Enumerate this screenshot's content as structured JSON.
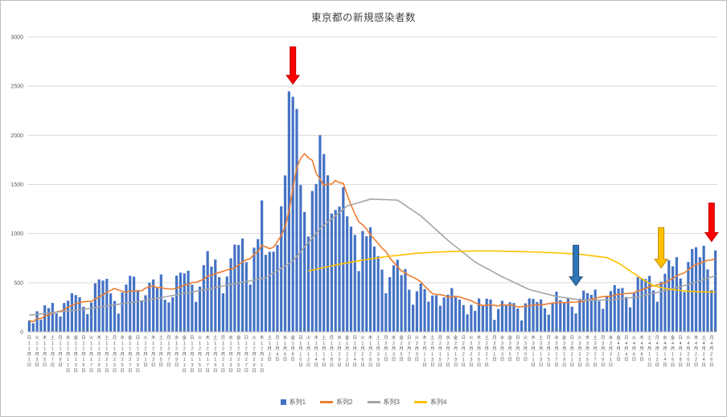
{
  "chart_data": {
    "type": "bar",
    "title": "東京都の新規感染者数",
    "ylim": [
      0,
      3000
    ],
    "y_ticks": [
      0,
      500,
      1000,
      1500,
      2000,
      2500,
      3000
    ],
    "grid": true,
    "legend_position": "bottom",
    "x": {
      "label_every": 2,
      "weekday_chars": [
        "日",
        "月",
        "火",
        "水",
        "木",
        "金",
        "土"
      ],
      "month_suffix": "月",
      "day_suffix": "日",
      "months": [
        {
          "m": 11,
          "days": 30
        },
        {
          "m": 12,
          "days": 31
        },
        {
          "m": 1,
          "days": 31
        },
        {
          "m": 2,
          "days": 28
        },
        {
          "m": 3,
          "days": 31
        },
        {
          "m": 4,
          "days": 27
        }
      ]
    },
    "series": [
      {
        "name": "系列1",
        "type": "bar",
        "color": "#4472C4",
        "values": [
          116,
          87,
          209,
          122,
          269,
          242,
          294,
          189,
          157,
          293,
          317,
          393,
          374,
          352,
          255,
          180,
          298,
          493,
          534,
          522,
          539,
          391,
          314,
          186,
          401,
          481,
          570,
          561,
          418,
          311,
          372,
          500,
          533,
          449,
          584,
          327,
          299,
          352,
          572,
          602,
          595,
          621,
          480,
          305,
          460,
          678,
          822,
          664,
          736,
          556,
          392,
          563,
          748,
          888,
          884,
          949,
          708,
          481,
          856,
          944,
          1337,
          783,
          814,
          816,
          884,
          1278,
          1591,
          2447,
          2392,
          2268,
          1494,
          1219,
          970,
          1433,
          1502,
          2001,
          1809,
          1592,
          1204,
          1240,
          1274,
          1471,
          1175,
          1070,
          986,
          618,
          1026,
          973,
          1064,
          868,
          769,
          633,
          393,
          556,
          676,
          734,
          577,
          639,
          429,
          276,
          412,
          491,
          434,
          307,
          369,
          371,
          266,
          350,
          378,
          445,
          353,
          327,
          272,
          178,
          275,
          213,
          340,
          270,
          337,
          329,
          121,
          232,
          316,
          279,
          301,
          293,
          237,
          116,
          290,
          340,
          335,
          304,
          330,
          239,
          175,
          300,
          409,
          323,
          303,
          342,
          256,
          187,
          337,
          420,
          394,
          376,
          430,
          313,
          234,
          364,
          414,
          475,
          440,
          446,
          355,
          249,
          399,
          555,
          545,
          537,
          570,
          421,
          306,
          510,
          591,
          729,
          667,
          759,
          543,
          405,
          711,
          843,
          861,
          759,
          876,
          635,
          425,
          828
        ]
      },
      {
        "name": "系列2",
        "type": "line",
        "color": "#ED7D31",
        "derived": "7day_moving_average_of_series1"
      },
      {
        "name": "系列3",
        "type": "line",
        "color": "#A5A5A5",
        "points": [
          [
            0,
            170
          ],
          [
            14,
            230
          ],
          [
            30,
            320
          ],
          [
            44,
            420
          ],
          [
            61,
            550
          ],
          [
            68,
            720
          ],
          [
            75,
            1050
          ],
          [
            82,
            1280
          ],
          [
            88,
            1350
          ],
          [
            95,
            1340
          ],
          [
            101,
            1180
          ],
          [
            108,
            930
          ],
          [
            115,
            710
          ],
          [
            122,
            560
          ],
          [
            129,
            430
          ],
          [
            136,
            360
          ],
          [
            143,
            320
          ],
          [
            150,
            325
          ],
          [
            157,
            355
          ],
          [
            164,
            420
          ],
          [
            170,
            480
          ],
          [
            177,
            570
          ]
        ]
      },
      {
        "name": "系列4",
        "type": "line",
        "color": "#FFC000",
        "points": [
          [
            72,
            620
          ],
          [
            79,
            680
          ],
          [
            86,
            730
          ],
          [
            93,
            770
          ],
          [
            100,
            800
          ],
          [
            107,
            815
          ],
          [
            114,
            822
          ],
          [
            121,
            822
          ],
          [
            128,
            815
          ],
          [
            135,
            805
          ],
          [
            142,
            790
          ],
          [
            149,
            755
          ],
          [
            152,
            700
          ],
          [
            155,
            620
          ],
          [
            158,
            540
          ],
          [
            161,
            470
          ],
          [
            164,
            440
          ],
          [
            168,
            420
          ],
          [
            172,
            408
          ],
          [
            177,
            405
          ]
        ]
      }
    ],
    "annotations": {
      "arrows": [
        {
          "name": "red-arrow-january-peak",
          "color": "#FF0000",
          "edge": "#C00000",
          "index": 68,
          "from_value": 2900,
          "to_value": 2520
        },
        {
          "name": "blue-arrow-march-bottom",
          "color": "#2E75B6",
          "edge": "#1F4E79",
          "index": 141,
          "from_value": 880,
          "to_value": 470
        },
        {
          "name": "yellow-arrow-april-cross",
          "color": "#FFC000",
          "edge": "#BF9000",
          "index": 163,
          "from_value": 1060,
          "to_value": 650
        },
        {
          "name": "red-arrow-april-rise",
          "color": "#FF0000",
          "edge": "#C00000",
          "index": 176,
          "from_value": 1310,
          "to_value": 920
        }
      ]
    },
    "colors": {
      "gridline": "#D9D9D9",
      "axis_line": "#BFBFBF",
      "axis_text": "#595959",
      "title_text": "#404040"
    }
  }
}
